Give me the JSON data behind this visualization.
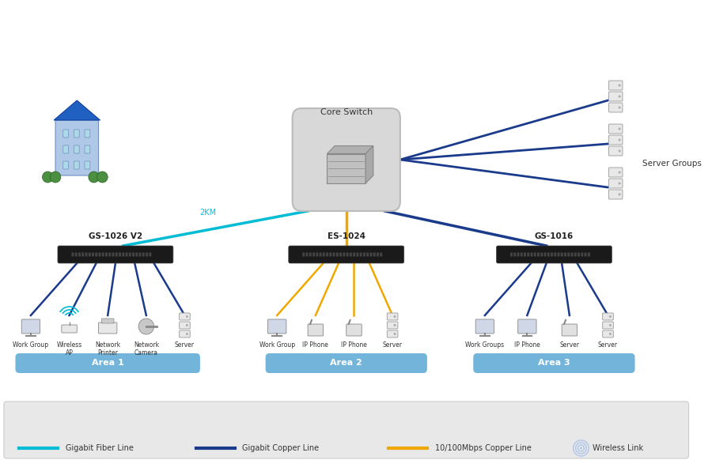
{
  "bg_color": "#ffffff",
  "legend_bg": "#e8e8e8",
  "fiber_color": "#00bcd4",
  "copper_color": "#1a3a8c",
  "copper100_color": "#f0a800",
  "wireless_color": "#aec6e8",
  "area_bg": "#5ba8d4",
  "area_text": "#ffffff",
  "switch_color": "#222222",
  "core_switch_bg": "#d0d0d0",
  "core_switch_border": "#aaaaaa",
  "label_color": "#333333",
  "fiber_label_color": "#4fc3d4",
  "title": "Core Switch",
  "switch_labels": [
    "GS-1026 V2",
    "ES-1024",
    "GS-1016"
  ],
  "area_labels": [
    "Area 1",
    "Area 2",
    "Area 3"
  ],
  "server_group_label": "Server Groups",
  "fiber_legend": "Gigabit Fiber Line",
  "copper_legend": "Gigabit Copper Line",
  "copper100_legend": "10/100Mbps Copper Line",
  "wireless_legend": "Wireless Link",
  "fiber_km_label": "2KM",
  "device_labels_area1": [
    "Work Group",
    "Wireless\nAP",
    "Network\nPrinter",
    "Network\nCamera",
    "Server"
  ],
  "device_labels_area2": [
    "Work Group",
    "IP Phone",
    "IP Phone",
    "Server"
  ],
  "device_labels_area3": [
    "Work Groups",
    "IP Phone",
    "Server"
  ]
}
